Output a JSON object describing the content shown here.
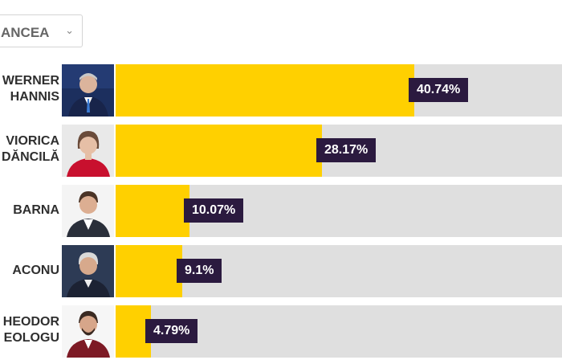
{
  "dropdown": {
    "label": "ANCEA",
    "icon": "chevron-down-icon"
  },
  "colors": {
    "bar_fill": "#ffd000",
    "bar_track": "#dfdfdf",
    "label_bg": "#2b1a3f"
  },
  "chart_data": {
    "type": "bar",
    "orientation": "horizontal",
    "categories": [
      "WERNER\nHANNIS",
      "VIORICA\nDĂNCILĂ",
      "BARNA",
      "ACONU",
      "HEODOR\nEOLOGU"
    ],
    "values": [
      40.74,
      28.17,
      10.07,
      9.1,
      4.79
    ],
    "value_labels": [
      "40.74%",
      "28.17%",
      "10.07%",
      "9.1%",
      "4.79%"
    ],
    "unit": "%"
  },
  "candidates": [
    {
      "name_line1": "WERNER",
      "name_line2": "HANNIS",
      "value_label": "40.74%"
    },
    {
      "name_line1": "VIORICA",
      "name_line2": "DĂNCILĂ",
      "value_label": "28.17%"
    },
    {
      "name_line1": "BARNA",
      "name_line2": "",
      "value_label": "10.07%"
    },
    {
      "name_line1": "ACONU",
      "name_line2": "",
      "value_label": "9.1%"
    },
    {
      "name_line1": "HEODOR",
      "name_line2": "EOLOGU",
      "value_label": "4.79%"
    }
  ]
}
